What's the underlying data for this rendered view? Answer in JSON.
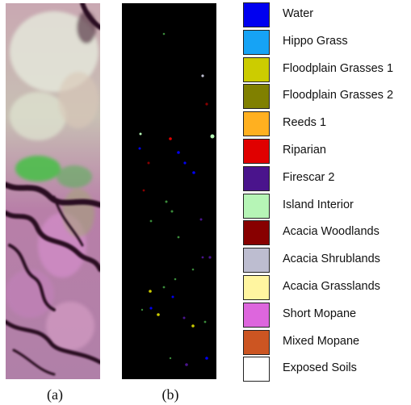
{
  "captions": {
    "a": "(a)",
    "b": "(b)"
  },
  "legend": [
    {
      "label": "Water",
      "color": "#0000f0"
    },
    {
      "label": "Hippo Grass",
      "color": "#16a3f5"
    },
    {
      "label": "Floodplain Grasses 1",
      "color": "#cccc00"
    },
    {
      "label": "Floodplain Grasses 2",
      "color": "#808000"
    },
    {
      "label": "Reeds 1",
      "color": "#ffb020"
    },
    {
      "label": "Riparian",
      "color": "#e00000"
    },
    {
      "label": "Firescar 2",
      "color": "#4a148c"
    },
    {
      "label": "Island Interior",
      "color": "#b6f5b6"
    },
    {
      "label": "Acacia Woodlands",
      "color": "#880000"
    },
    {
      "label": "Acacia Shrublands",
      "color": "#bdbdd0"
    },
    {
      "label": "Acacia Grasslands",
      "color": "#fff5a0"
    },
    {
      "label": "Short Mopane",
      "color": "#dd66dd"
    },
    {
      "label": "Mixed Mopane",
      "color": "#cc5522"
    },
    {
      "label": "Exposed Soils",
      "color": "#ffffff"
    }
  ]
}
